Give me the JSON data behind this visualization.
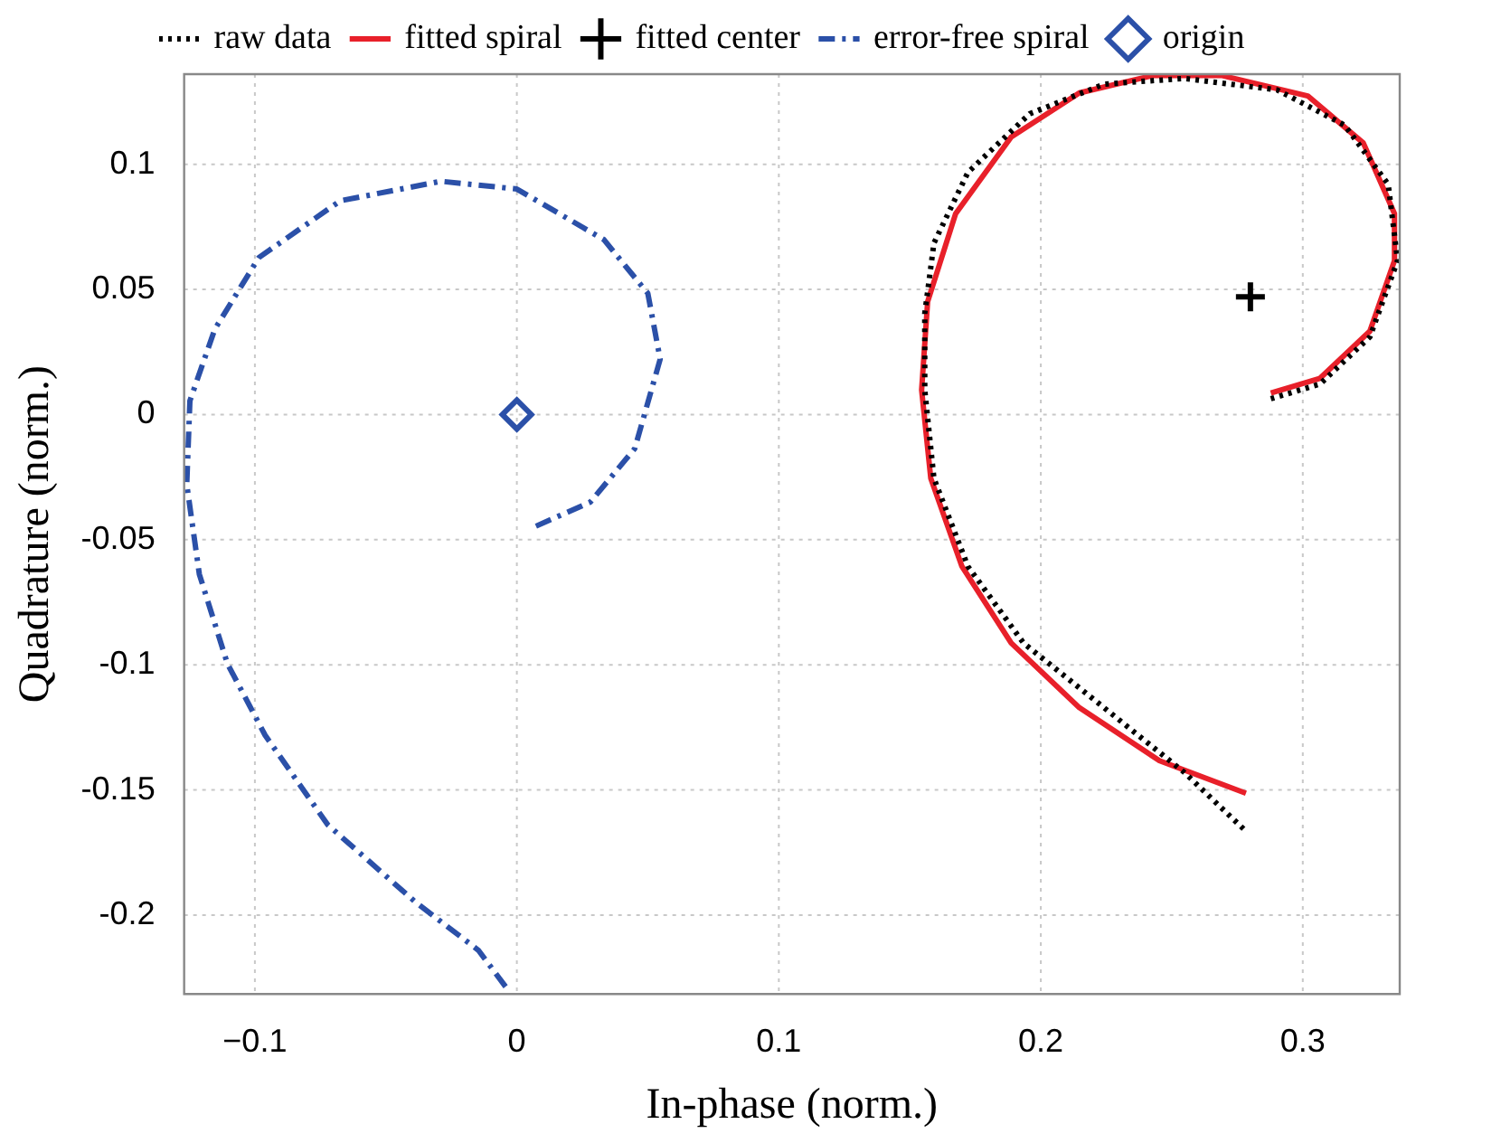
{
  "chart_data": {
    "type": "line",
    "xlabel": "In-phase (norm.)",
    "ylabel": "Quadrature (norm.)",
    "xlim": [
      -0.127,
      0.337
    ],
    "ylim": [
      -0.2315,
      0.136
    ],
    "xticks": [
      {
        "value": -0.1,
        "label": "−0.1"
      },
      0,
      0.1,
      0.2,
      0.3
    ],
    "yticks": [
      -0.2,
      -0.15,
      -0.1,
      -0.05,
      0,
      0.05,
      0.1
    ],
    "grid": true,
    "legend": "top",
    "series": [
      {
        "name": "raw data",
        "type": "line",
        "line_style": "dotted",
        "marker": "none",
        "color": "#000000",
        "x": [
          0.2878,
          0.3066,
          0.3256,
          0.3362,
          0.3326,
          0.316,
          0.2902,
          0.2548,
          0.2241,
          0.1958,
          0.1722,
          0.1592,
          0.1557,
          0.1557,
          0.1592,
          0.1722,
          0.1934,
          0.2241,
          0.2548,
          0.2783
        ],
        "values": [
          0.0063,
          0.0122,
          0.031,
          0.0615,
          0.092,
          0.1156,
          0.1297,
          0.1343,
          0.132,
          0.1202,
          0.0968,
          0.0685,
          0.0403,
          0.0098,
          -0.0255,
          -0.0607,
          -0.0913,
          -0.1171,
          -0.143,
          -0.1665
        ]
      },
      {
        "name": "fitted spiral",
        "type": "line",
        "line_style": "solid",
        "marker": "none",
        "color": "#e8202a",
        "x": [
          0.2878,
          0.3066,
          0.3256,
          0.335,
          0.335,
          0.3231,
          0.3019,
          0.2689,
          0.243,
          0.2147,
          0.1887,
          0.1675,
          0.1568,
          0.1545,
          0.158,
          0.1699,
          0.1887,
          0.2147,
          0.2453,
          0.2783
        ],
        "values": [
          0.0086,
          0.0145,
          0.0333,
          0.0615,
          0.0803,
          0.1085,
          0.1273,
          0.1355,
          0.1355,
          0.1285,
          0.1109,
          0.0803,
          0.0451,
          0.0098,
          -0.0255,
          -0.0607,
          -0.0913,
          -0.1171,
          -0.1383,
          -0.1513
        ]
      },
      {
        "name": "fitted center",
        "type": "scatter",
        "marker": "cross",
        "color": "#000000",
        "x": [
          0.28
        ],
        "values": [
          0.047
        ]
      },
      {
        "name": "error-free spiral",
        "type": "line",
        "line_style": "dashdot",
        "marker": "none",
        "color": "#2b50a8",
        "x": [
          0.0073,
          0.028,
          0.045,
          0.0547,
          0.05,
          0.0332,
          0,
          -0.029,
          -0.0674,
          -0.0985,
          -0.1153,
          -0.1248,
          -0.126,
          -0.1212,
          -0.1105,
          -0.0961,
          -0.0722,
          -0.0386,
          -0.0147,
          -0.0028
        ],
        "values": [
          -0.0446,
          -0.035,
          -0.0136,
          0.0221,
          0.0484,
          0.0699,
          0.0901,
          0.0932,
          0.0854,
          0.0627,
          0.0341,
          0.0055,
          -0.0279,
          -0.0638,
          -0.0995,
          -0.1281,
          -0.1639,
          -0.1949,
          -0.214,
          -0.2307
        ]
      },
      {
        "name": "origin",
        "type": "scatter",
        "marker": "diamond",
        "color": "#2b50a8",
        "x": [
          0
        ],
        "values": [
          0
        ]
      }
    ]
  }
}
